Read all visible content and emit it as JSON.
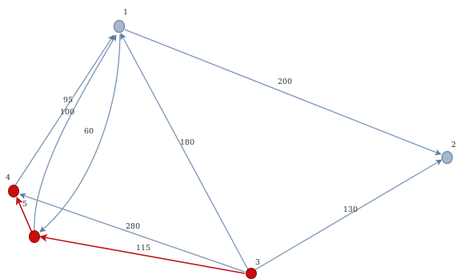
{
  "nodes": [
    {
      "id": "1",
      "label": "1",
      "color": "blue"
    },
    {
      "id": "2",
      "label": "2",
      "color": "blue"
    },
    {
      "id": "3",
      "label": "3",
      "color": "red"
    },
    {
      "id": "4",
      "label": "4",
      "color": "red"
    },
    {
      "id": "5",
      "label": "5",
      "color": "red"
    }
  ],
  "edges": [
    {
      "from": "1",
      "to": "2",
      "label": "200",
      "color": "blue"
    },
    {
      "from": "3",
      "to": "1",
      "label": "180",
      "color": "blue"
    },
    {
      "from": "3",
      "to": "2",
      "label": "130",
      "color": "blue"
    },
    {
      "from": "3",
      "to": "4",
      "label": "280",
      "color": "blue"
    },
    {
      "from": "3",
      "to": "5",
      "label": "115",
      "color": "red"
    },
    {
      "from": "4",
      "to": "1",
      "label": "95",
      "color": "blue"
    },
    {
      "from": "5",
      "to": "1",
      "label": "100",
      "color": "blue"
    },
    {
      "from": "1",
      "to": "5",
      "label": "60",
      "color": "blue"
    },
    {
      "from": "5",
      "to": "4",
      "label": "",
      "color": "red"
    }
  ],
  "colors": {
    "blue_edge": "#7a95b8",
    "red_edge": "#c0161b",
    "blue_node": "#a7b7cf",
    "red_node": "#c90d0d"
  }
}
